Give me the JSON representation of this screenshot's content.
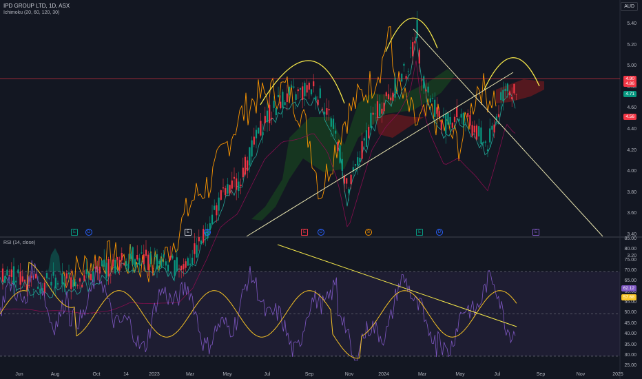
{
  "header": {
    "symbol_title": "IPD GROUP LTD, 1D, ASX",
    "ichimoku_label": "Ichimoku (20, 60, 120, 30)",
    "rsi_label": "RSI (14, close)",
    "currency": "AUD"
  },
  "price_axis": [
    "5.40",
    "5.20",
    "5.00",
    "4.80",
    "4.60",
    "4.40",
    "4.20",
    "4.00",
    "3.80",
    "3.60",
    "3.40",
    "3.20"
  ],
  "price_tags": [
    {
      "value": "4.90",
      "color": "#f23645"
    },
    {
      "value": "4.86",
      "color": "#f23645"
    },
    {
      "value": "4.71",
      "color": "#089981"
    },
    {
      "value": "4.56",
      "color": "#f23645"
    }
  ],
  "rsi_axis": [
    "85.00",
    "80.00",
    "75.00",
    "70.00",
    "65.00",
    "60.00",
    "55.00",
    "50.00",
    "45.00",
    "40.00",
    "35.00",
    "30.00",
    "25.00"
  ],
  "rsi_tags": [
    {
      "value": "62.12",
      "color": "#7e57c2"
    },
    {
      "value": "57.68",
      "color": "#f7c325"
    }
  ],
  "time_axis": [
    "Jun",
    "Aug",
    "Oct",
    "14",
    "2023",
    "Mar",
    "May",
    "Jul",
    "Sep",
    "Nov",
    "2024",
    "Mar",
    "May",
    "Jul",
    "Sep",
    "Nov",
    "2025"
  ],
  "events": [
    {
      "icon": "earnings-icon",
      "letter": "E",
      "color": "#089981"
    },
    {
      "icon": "dividend-icon",
      "letter": "D",
      "color": "#2962ff"
    },
    {
      "icon": "earnings-icon",
      "letter": "E",
      "color": "#d1d4dc"
    },
    {
      "icon": "dividend-icon",
      "letter": "D",
      "color": "#2962ff"
    },
    {
      "icon": "earnings-icon",
      "letter": "E",
      "color": "#f23645"
    },
    {
      "icon": "dividend-icon",
      "letter": "D",
      "color": "#2962ff"
    },
    {
      "icon": "split-icon",
      "letter": "S",
      "color": "#ff9800"
    },
    {
      "icon": "earnings-icon",
      "letter": "E",
      "color": "#089981"
    },
    {
      "icon": "dividend-icon",
      "letter": "D",
      "color": "#2962ff"
    },
    {
      "icon": "earnings-icon",
      "letter": "E",
      "color": "#7e57c2"
    }
  ],
  "colors": {
    "background": "#131722",
    "up": "#089981",
    "down": "#f23645",
    "rsi_line": "#7e57c2",
    "rsi_ma": "#f7c325",
    "drawing": "#f7e94a",
    "trendline": "#e8e4b0",
    "lagging": "#ff9800",
    "rsi_band": "#7e57c2"
  },
  "chart_data": {
    "type": "candlestick-with-indicators",
    "symbol": "IPD GROUP LTD",
    "interval": "1D",
    "exchange": "ASX",
    "ylim": [
      3.1,
      5.55
    ],
    "rsi_ylim": [
      25,
      85
    ],
    "rsi_bands": [
      30,
      50,
      70
    ],
    "annotations": [
      "head-and-shoulders arcs",
      "ascending trendline",
      "descending trendline",
      "rsi downtrend line"
    ]
  }
}
